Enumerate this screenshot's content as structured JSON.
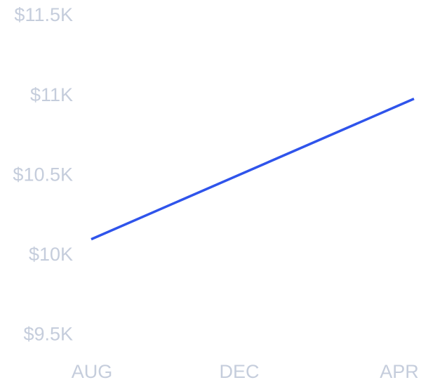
{
  "chart_data": {
    "type": "line",
    "title": "",
    "xlabel": "",
    "ylabel": "",
    "categories": [
      "AUG",
      "DEC",
      "APR"
    ],
    "y_ticks": [
      {
        "value": 11500,
        "label": "$11.5K"
      },
      {
        "value": 11000,
        "label": "$11K"
      },
      {
        "value": 10500,
        "label": "$10.5K"
      },
      {
        "value": 10000,
        "label": "$10K"
      },
      {
        "value": 9500,
        "label": "$9.5K"
      }
    ],
    "ylim": [
      9500,
      11500
    ],
    "grid": false,
    "series": [
      {
        "points": [
          {
            "x": "AUG",
            "y": 10090
          },
          {
            "x": "APR",
            "y": 10970
          }
        ],
        "color": "#2f54eb"
      }
    ],
    "label_color": "#c5cddc"
  }
}
